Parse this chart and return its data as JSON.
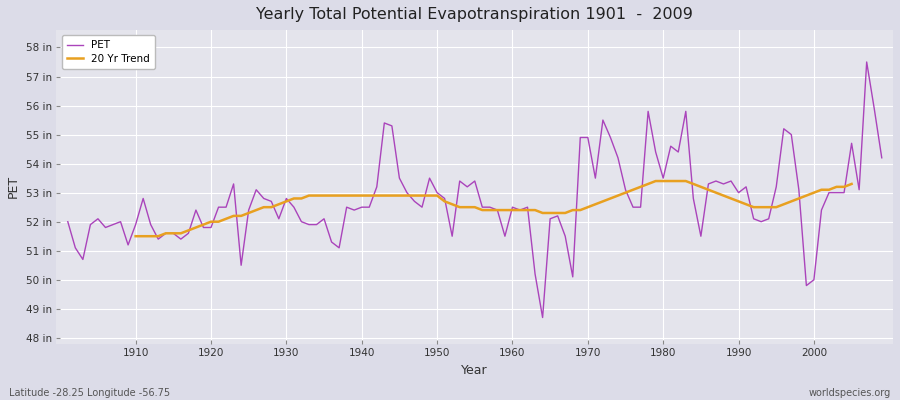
{
  "title": "Yearly Total Potential Evapotranspiration 1901  -  2009",
  "xlabel": "Year",
  "ylabel": "PET",
  "footnote_left": "Latitude -28.25 Longitude -56.75",
  "footnote_right": "worldspecies.org",
  "pet_color": "#AA44BB",
  "trend_color": "#E8A020",
  "bg_color": "#E4E4EC",
  "fig_color": "#DCDCE8",
  "ylim": [
    47.8,
    58.6
  ],
  "yticks": [
    48,
    49,
    50,
    51,
    52,
    53,
    54,
    55,
    56,
    57,
    58
  ],
  "ytick_labels": [
    "48 in",
    "49 in",
    "50 in",
    "51 in",
    "52 in",
    "53 in",
    "54 in",
    "55 in",
    "56 in",
    "57 in",
    "58 in"
  ],
  "xlim": [
    1899.5,
    2010.5
  ],
  "xticks": [
    1910,
    1920,
    1930,
    1940,
    1950,
    1960,
    1970,
    1980,
    1990,
    2000
  ],
  "years": [
    1901,
    1902,
    1903,
    1904,
    1905,
    1906,
    1907,
    1908,
    1909,
    1910,
    1911,
    1912,
    1913,
    1914,
    1915,
    1916,
    1917,
    1918,
    1919,
    1920,
    1921,
    1922,
    1923,
    1924,
    1925,
    1926,
    1927,
    1928,
    1929,
    1930,
    1931,
    1932,
    1933,
    1934,
    1935,
    1936,
    1937,
    1938,
    1939,
    1940,
    1941,
    1942,
    1943,
    1944,
    1945,
    1946,
    1947,
    1948,
    1949,
    1950,
    1951,
    1952,
    1953,
    1954,
    1955,
    1956,
    1957,
    1958,
    1959,
    1960,
    1961,
    1962,
    1963,
    1964,
    1965,
    1966,
    1967,
    1968,
    1969,
    1970,
    1971,
    1972,
    1973,
    1974,
    1975,
    1976,
    1977,
    1978,
    1979,
    1980,
    1981,
    1982,
    1983,
    1984,
    1985,
    1986,
    1987,
    1988,
    1989,
    1990,
    1991,
    1992,
    1993,
    1994,
    1995,
    1996,
    1997,
    1998,
    1999,
    2000,
    2001,
    2002,
    2003,
    2004,
    2005,
    2006,
    2007,
    2008,
    2009
  ],
  "pet_values": [
    52.0,
    51.1,
    50.7,
    51.9,
    52.1,
    51.8,
    51.9,
    52.0,
    51.2,
    51.9,
    52.8,
    51.9,
    51.4,
    51.6,
    51.6,
    51.4,
    51.6,
    52.4,
    51.8,
    51.8,
    52.5,
    52.5,
    53.3,
    50.5,
    52.4,
    53.1,
    52.8,
    52.7,
    52.1,
    52.8,
    52.5,
    52.0,
    51.9,
    51.9,
    52.1,
    51.3,
    51.1,
    52.5,
    52.4,
    52.5,
    52.5,
    53.2,
    55.4,
    55.3,
    53.5,
    53.0,
    52.7,
    52.5,
    53.5,
    53.0,
    52.8,
    51.5,
    53.4,
    53.2,
    53.4,
    52.5,
    52.5,
    52.4,
    51.5,
    52.5,
    52.4,
    52.5,
    50.2,
    48.7,
    52.1,
    52.2,
    51.5,
    50.1,
    54.9,
    54.9,
    53.5,
    55.5,
    54.9,
    54.2,
    53.1,
    52.5,
    52.5,
    55.8,
    54.4,
    53.5,
    54.6,
    54.4,
    55.8,
    52.8,
    51.5,
    53.3,
    53.4,
    53.3,
    53.4,
    53.0,
    53.2,
    52.1,
    52.0,
    52.1,
    53.2,
    55.2,
    55.0,
    53.1,
    49.8,
    50.0,
    52.4,
    53.0,
    53.0,
    53.0,
    54.7,
    53.1,
    57.5,
    55.9,
    54.2
  ],
  "trend_values": [
    null,
    null,
    null,
    null,
    null,
    null,
    null,
    null,
    null,
    51.5,
    51.5,
    51.5,
    51.5,
    51.6,
    51.6,
    51.6,
    51.7,
    51.8,
    51.9,
    52.0,
    52.0,
    52.1,
    52.2,
    52.2,
    52.3,
    52.4,
    52.5,
    52.5,
    52.6,
    52.7,
    52.8,
    52.8,
    52.9,
    52.9,
    52.9,
    52.9,
    52.9,
    52.9,
    52.9,
    52.9,
    52.9,
    52.9,
    52.9,
    52.9,
    52.9,
    52.9,
    52.9,
    52.9,
    52.9,
    52.9,
    52.7,
    52.6,
    52.5,
    52.5,
    52.5,
    52.4,
    52.4,
    52.4,
    52.4,
    52.4,
    52.4,
    52.4,
    52.4,
    52.3,
    52.3,
    52.3,
    52.3,
    52.4,
    52.4,
    52.5,
    52.6,
    52.7,
    52.8,
    52.9,
    53.0,
    53.1,
    53.2,
    53.3,
    53.4,
    53.4,
    53.4,
    53.4,
    53.4,
    53.3,
    53.2,
    53.1,
    53.0,
    52.9,
    52.8,
    52.7,
    52.6,
    52.5,
    52.5,
    52.5,
    52.5,
    52.6,
    52.7,
    52.8,
    52.9,
    53.0,
    53.1,
    53.1,
    53.2,
    53.2,
    53.3,
    null,
    null,
    null,
    null
  ]
}
